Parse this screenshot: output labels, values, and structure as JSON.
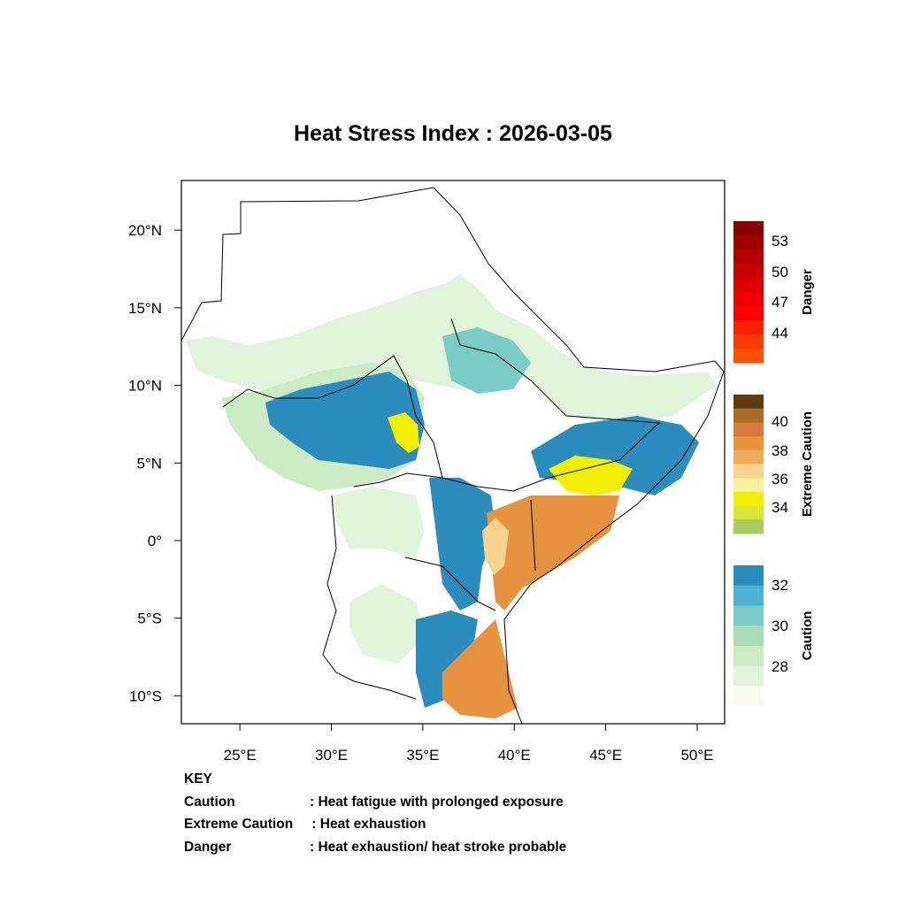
{
  "title": "Heat Stress Index : 2026-03-05",
  "map": {
    "lon_ticks": [
      "25°E",
      "30°E",
      "35°E",
      "40°E",
      "45°E",
      "50°E"
    ],
    "lat_ticks": [
      "20°N",
      "15°N",
      "10°N",
      "5°N",
      "0°",
      "5°S",
      "10°S"
    ],
    "lon_range": [
      21.8,
      51.5
    ],
    "lat_range": [
      -11.8,
      23.2
    ]
  },
  "colorbars": [
    {
      "label": "Danger",
      "ticks": [
        "53",
        "50",
        "47",
        "44"
      ],
      "colors": [
        "#8b0000",
        "#a00000",
        "#b40000",
        "#c80000",
        "#dc0000",
        "#ee0000",
        "#ff0000",
        "#ff2000",
        "#ff3a00",
        "#ff5000"
      ]
    },
    {
      "label": "Extreme Caution",
      "ticks": [
        "40",
        "38",
        "36",
        "34"
      ],
      "colors": [
        "#5e3c0c",
        "#a86b28",
        "#d87a3a",
        "#e6923e",
        "#efab5c",
        "#f6d48e",
        "#faf09a",
        "#f4ef00",
        "#d8e832",
        "#a8cc60"
      ]
    },
    {
      "label": "Caution",
      "ticks": [
        "32",
        "30",
        "28"
      ],
      "colors": [
        "#2b8cbe",
        "#4eb3d3",
        "#7bccc4",
        "#a8ddb5",
        "#ccebc5",
        "#e0f3db",
        "#f7fcf0"
      ]
    }
  ],
  "key": {
    "heading": "KEY",
    "rows": [
      {
        "term": "Caution",
        "definition": ": Heat fatigue with prolonged exposure"
      },
      {
        "term": "Extreme Caution",
        "definition": " : Heat exhaustion"
      },
      {
        "term": "Danger",
        "definition": ": Heat exhaustion/ heat stroke probable"
      }
    ]
  }
}
